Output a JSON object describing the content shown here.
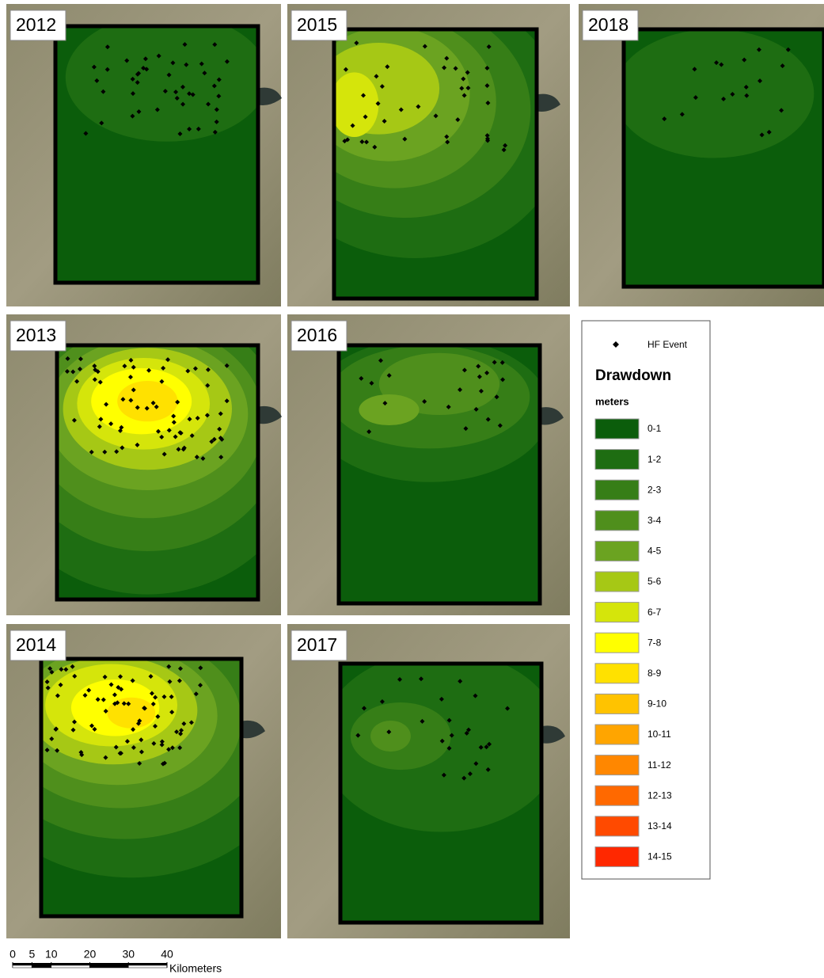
{
  "panels": [
    {
      "label": "2012"
    },
    {
      "label": "2015"
    },
    {
      "label": "2018"
    },
    {
      "label": "2013"
    },
    {
      "label": "2016"
    },
    {
      "label": "2014"
    },
    {
      "label": "2017"
    }
  ],
  "legend": {
    "event_label": "HF Event",
    "title": "Drawdown",
    "unit": "meters",
    "classes": [
      {
        "label": "0-1",
        "color": "#0b5d0b"
      },
      {
        "label": "1-2",
        "color": "#1e6d12"
      },
      {
        "label": "2-3",
        "color": "#367e17"
      },
      {
        "label": "3-4",
        "color": "#4f8f1c"
      },
      {
        "label": "4-5",
        "color": "#6ba321"
      },
      {
        "label": "5-6",
        "color": "#a6c815"
      },
      {
        "label": "6-7",
        "color": "#d5e50b"
      },
      {
        "label": "7-8",
        "color": "#ffff00"
      },
      {
        "label": "8-9",
        "color": "#ffe100"
      },
      {
        "label": "9-10",
        "color": "#ffc300"
      },
      {
        "label": "10-11",
        "color": "#ffa500"
      },
      {
        "label": "11-12",
        "color": "#ff8700"
      },
      {
        "label": "12-13",
        "color": "#ff6900"
      },
      {
        "label": "13-14",
        "color": "#ff4a00"
      },
      {
        "label": "14-15",
        "color": "#ff2800"
      }
    ]
  },
  "scale_bar": {
    "ticks": [
      0,
      5,
      10,
      20,
      30,
      40
    ],
    "unit": "Kilometers"
  }
}
